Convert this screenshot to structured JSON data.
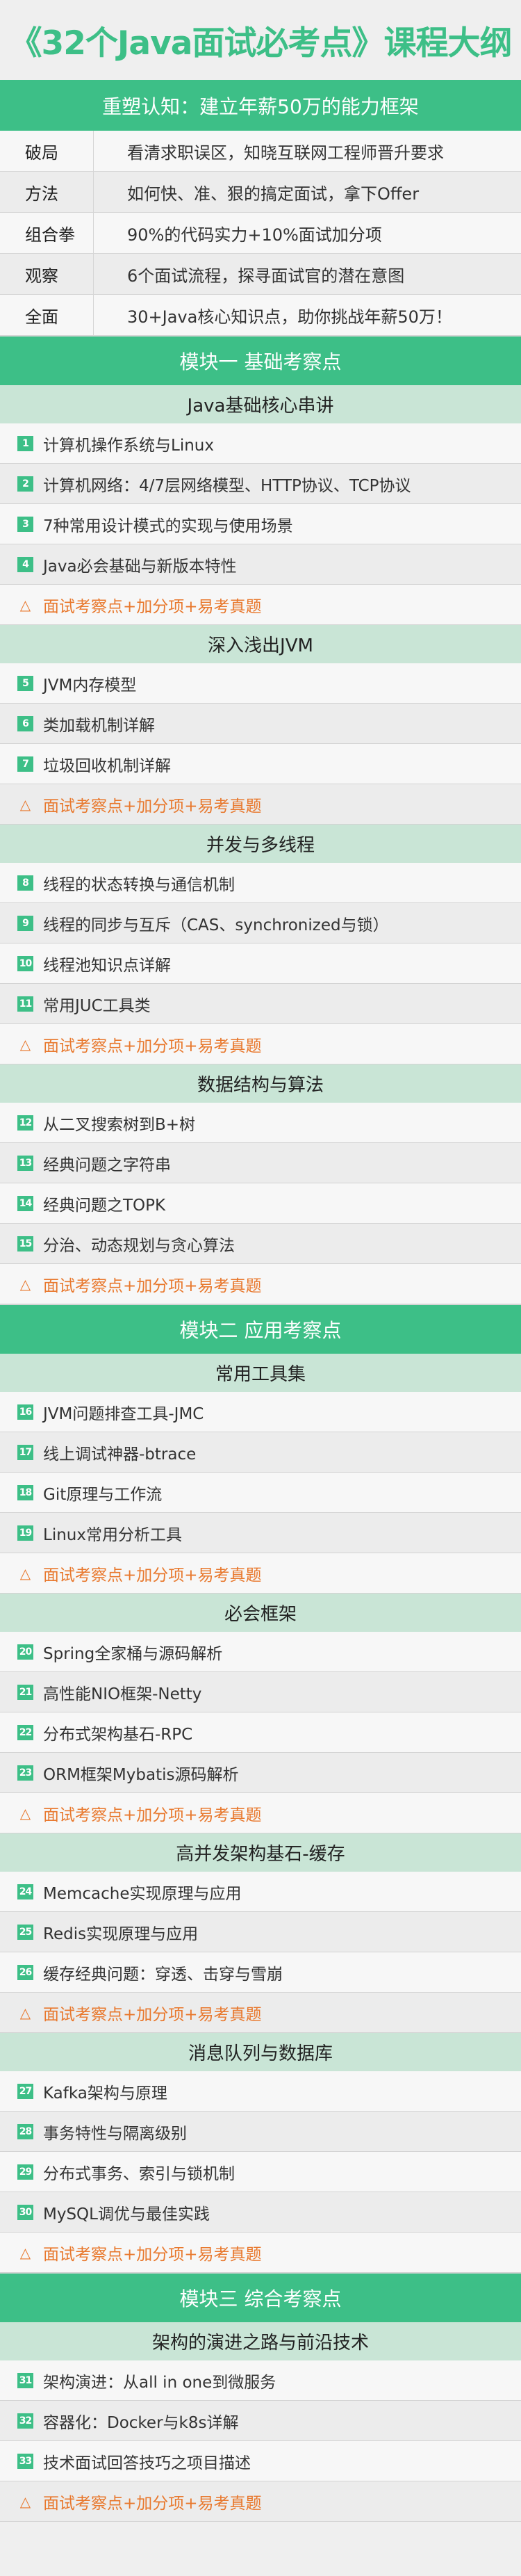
{
  "title": "《32个Java面试必考点》课程大纲",
  "intro": {
    "header": "重塑认知：建立年薪50万的能力框架",
    "rows": [
      {
        "key": "破局",
        "value": "看清求职误区，知晓互联网工程师晋升要求"
      },
      {
        "key": "方法",
        "value": "如何快、准、狠的搞定面试，拿下Offer"
      },
      {
        "key": "组合拳",
        "value": "90%的代码实力+10%面试加分项"
      },
      {
        "key": "观察",
        "value": "6个面试流程，探寻面试官的潜在意图"
      },
      {
        "key": "全面",
        "value": "30+Java核心知识点，助你挑战年薪50万！"
      }
    ]
  },
  "tip_label": "面试考察点+加分项+易考真题",
  "colors": {
    "accent": "#3dbf87",
    "subsection": "#c9e5d6",
    "tip": "#e8782d"
  },
  "modules": [
    {
      "title": "模块一  基础考察点",
      "sections": [
        {
          "title": "Java基础核心串讲",
          "items": [
            {
              "n": "1",
              "t": "计算机操作系统与Linux"
            },
            {
              "n": "2",
              "t": "计算机网络：4/7层网络模型、HTTP协议、TCP协议"
            },
            {
              "n": "3",
              "t": "7种常用设计模式的实现与使用场景"
            },
            {
              "n": "4",
              "t": "Java必会基础与新版本特性"
            }
          ]
        },
        {
          "title": "深入浅出JVM",
          "items": [
            {
              "n": "5",
              "t": "JVM内存模型"
            },
            {
              "n": "6",
              "t": "类加载机制详解"
            },
            {
              "n": "7",
              "t": "垃圾回收机制详解"
            }
          ]
        },
        {
          "title": "并发与多线程",
          "items": [
            {
              "n": "8",
              "t": "线程的状态转换与通信机制"
            },
            {
              "n": "9",
              "t": "线程的同步与互斥（CAS、synchronized与锁）"
            },
            {
              "n": "10",
              "t": "线程池知识点详解"
            },
            {
              "n": "11",
              "t": "常用JUC工具类"
            }
          ]
        },
        {
          "title": "数据结构与算法",
          "items": [
            {
              "n": "12",
              "t": "从二叉搜索树到B+树"
            },
            {
              "n": "13",
              "t": "经典问题之字符串"
            },
            {
              "n": "14",
              "t": "经典问题之TOPK"
            },
            {
              "n": "15",
              "t": "分治、动态规划与贪心算法"
            }
          ]
        }
      ]
    },
    {
      "title": "模块二  应用考察点",
      "sections": [
        {
          "title": "常用工具集",
          "items": [
            {
              "n": "16",
              "t": "JVM问题排查工具-JMC"
            },
            {
              "n": "17",
              "t": "线上调试神器-btrace"
            },
            {
              "n": "18",
              "t": "Git原理与工作流"
            },
            {
              "n": "19",
              "t": "Linux常用分析工具"
            }
          ]
        },
        {
          "title": "必会框架",
          "items": [
            {
              "n": "20",
              "t": "Spring全家桶与源码解析"
            },
            {
              "n": "21",
              "t": "高性能NIO框架-Netty"
            },
            {
              "n": "22",
              "t": "分布式架构基石-RPC"
            },
            {
              "n": "23",
              "t": "ORM框架Mybatis源码解析"
            }
          ]
        },
        {
          "title": "高并发架构基石-缓存",
          "items": [
            {
              "n": "24",
              "t": "Memcache实现原理与应用"
            },
            {
              "n": "25",
              "t": "Redis实现原理与应用"
            },
            {
              "n": "26",
              "t": "缓存经典问题：穿透、击穿与雪崩"
            }
          ]
        },
        {
          "title": "消息队列与数据库",
          "items": [
            {
              "n": "27",
              "t": "Kafka架构与原理"
            },
            {
              "n": "28",
              "t": "事务特性与隔离级别"
            },
            {
              "n": "29",
              "t": "分布式事务、索引与锁机制"
            },
            {
              "n": "30",
              "t": "MySQL调优与最佳实践"
            }
          ]
        }
      ]
    },
    {
      "title": "模块三  综合考察点",
      "sections": [
        {
          "title": "架构的演进之路与前沿技术",
          "items": [
            {
              "n": "31",
              "t": "架构演进：从all in one到微服务"
            },
            {
              "n": "32",
              "t": "容器化：Docker与k8s详解"
            },
            {
              "n": "33",
              "t": "技术面试回答技巧之项目描述"
            }
          ]
        }
      ]
    }
  ]
}
